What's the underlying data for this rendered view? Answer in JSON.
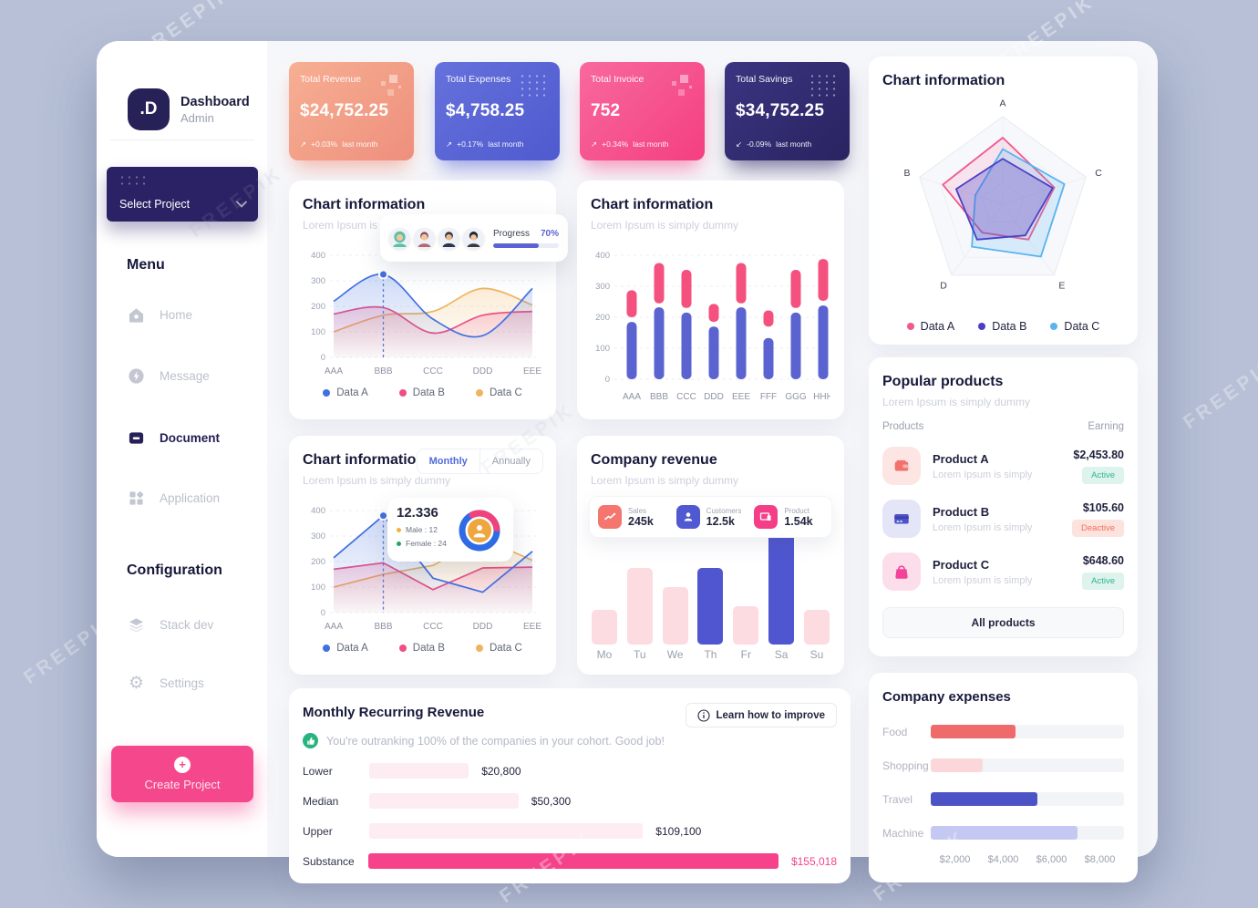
{
  "watermark": "FREEPIK",
  "sidebar": {
    "logo": ".D",
    "brand_title": "Dashboard",
    "brand_subtitle": "Admin",
    "select_project": "Select Project",
    "menu_heading": "Menu",
    "menu": [
      {
        "label": "Home",
        "active": false
      },
      {
        "label": "Message",
        "active": false
      },
      {
        "label": "Document",
        "active": true
      },
      {
        "label": "Application",
        "active": false
      }
    ],
    "config_heading": "Configuration",
    "config": [
      {
        "label": "Stack dev"
      },
      {
        "label": "Settings"
      }
    ],
    "create_project": "Create Project"
  },
  "stat_cards": [
    {
      "title": "Total Revenue",
      "value": "$24,752.25",
      "arrow": "↗",
      "change": "+0.03%",
      "note": "last month",
      "bg": "#ee8f7d"
    },
    {
      "title": "Total Expenses",
      "value": "$4,758.25",
      "arrow": "↗",
      "change": "+0.17%",
      "note": "last month",
      "bg": "#4f5ace"
    },
    {
      "title": "Total Invoice",
      "value": "752",
      "arrow": "↗",
      "change": "+0.34%",
      "note": "last month",
      "bg": "#f43f81"
    },
    {
      "title": "Total Savings",
      "value": "$34,752.25",
      "arrow": "↙",
      "change": "-0.09%",
      "note": "last month",
      "bg": "#292360"
    }
  ],
  "cards": {
    "line_smooth": {
      "title": "Chart information",
      "subtitle": "Lorem Ipsum is simply dummy",
      "tooltip": {
        "label": "Progress",
        "value": "70%",
        "percent": 70
      },
      "legend": [
        {
          "label": "Data A",
          "color": "#4170e0"
        },
        {
          "label": "Data B",
          "color": "#ee4f86"
        },
        {
          "label": "Data C",
          "color": "#efb45f"
        }
      ],
      "chart_data": {
        "type": "area",
        "x": [
          "AAA",
          "BBB",
          "CCC",
          "DDD",
          "EEE"
        ],
        "ylim": [
          0,
          400
        ],
        "yticks": [
          400,
          300,
          200,
          100,
          0
        ],
        "series": [
          {
            "name": "Data A",
            "color": "#4170e0",
            "values": [
              220,
              325,
              150,
              85,
              270
            ]
          },
          {
            "name": "Data B",
            "color": "#ee4f86",
            "values": [
              170,
              195,
              95,
              165,
              180
            ]
          },
          {
            "name": "Data C",
            "color": "#efb45f",
            "values": [
              100,
              165,
              180,
              270,
              205
            ]
          }
        ],
        "marker": {
          "series": 0,
          "index": 1
        }
      }
    },
    "bars": {
      "title": "Chart information",
      "subtitle": "Lorem Ipsum is simply dummy",
      "chart_data": {
        "type": "bar",
        "x": [
          "AAA",
          "BBB",
          "CCC",
          "DDD",
          "EEE",
          "FFF",
          "GGG",
          "HHH"
        ],
        "ylim": [
          0,
          400
        ],
        "yticks": [
          400,
          300,
          200,
          100,
          0
        ],
        "series": [
          {
            "name": "bottom",
            "color": "#5a63cf",
            "ranges": [
              [
                0,
                185
              ],
              [
                0,
                232
              ],
              [
                0,
                215
              ],
              [
                0,
                170
              ],
              [
                0,
                232
              ],
              [
                0,
                133
              ],
              [
                0,
                215
              ],
              [
                0,
                238
              ]
            ]
          },
          {
            "name": "top",
            "color": "#f4517e",
            "ranges": [
              [
                200,
                287
              ],
              [
                245,
                375
              ],
              [
                230,
                353
              ],
              [
                185,
                243
              ],
              [
                245,
                375
              ],
              [
                170,
                222
              ],
              [
                230,
                353
              ],
              [
                253,
                388
              ]
            ]
          }
        ]
      }
    },
    "radar": {
      "title": "Chart information",
      "legend": [
        {
          "label": "Data A",
          "color": "#f2588a"
        },
        {
          "label": "Data B",
          "color": "#4b3fc6"
        },
        {
          "label": "Data C",
          "color": "#58b4ef"
        }
      ],
      "chart_data": {
        "type": "radar",
        "axes": [
          "A",
          "C",
          "E",
          "D",
          "B"
        ],
        "max": 1,
        "series": [
          {
            "name": "Data A",
            "color": "#f2588a",
            "values": [
              0.76,
              0.62,
              0.5,
              0.4,
              0.72
            ]
          },
          {
            "name": "Data B",
            "color": "#4b3fc6",
            "values": [
              0.52,
              0.6,
              0.44,
              0.5,
              0.56
            ]
          },
          {
            "name": "Data C",
            "color": "#58b4ef",
            "values": [
              0.63,
              0.74,
              0.74,
              0.6,
              0.33
            ]
          }
        ]
      }
    },
    "line_straight": {
      "title": "Chart information",
      "subtitle": "Lorem Ipsum is simply dummy",
      "toggle": {
        "options": [
          "Monthly",
          "Annually"
        ],
        "active": "Monthly"
      },
      "tooltip": {
        "value": "12.336",
        "male": "Male : 12",
        "female": "Female : 24",
        "male_dot": "#efb43f",
        "female_dot": "#27a26b",
        "donut": {
          "ring": "#2e6be4",
          "arc": "#f0427c",
          "center": "#efa63f",
          "arc_percent": 30
        }
      },
      "legend": [
        {
          "label": "Data A",
          "color": "#4170e0"
        },
        {
          "label": "Data B",
          "color": "#ee4f86"
        },
        {
          "label": "Data C",
          "color": "#efb45f"
        }
      ],
      "chart_data": {
        "type": "line",
        "x": [
          "AAA",
          "BBB",
          "CCC",
          "DDD",
          "EEE"
        ],
        "ylim": [
          0,
          400
        ],
        "yticks": [
          400,
          300,
          200,
          100,
          0
        ],
        "series": [
          {
            "name": "Data A",
            "color": "#4170e0",
            "values": [
              215,
              380,
              135,
              80,
              240
            ]
          },
          {
            "name": "Data B",
            "color": "#ee4f86",
            "values": [
              170,
              195,
              90,
              175,
              178
            ]
          },
          {
            "name": "Data C",
            "color": "#efb45f",
            "values": [
              100,
              150,
              185,
              290,
              205
            ]
          }
        ],
        "marker": {
          "series": 0,
          "index": 1
        }
      }
    },
    "revenue": {
      "title": "Company revenue",
      "subtitle": "Lorem Ipsum is simply dummy",
      "stats": [
        {
          "label": "Sales",
          "value": "245k",
          "color": "#f4766f"
        },
        {
          "label": "Customers",
          "value": "12.5k",
          "color": "#5159d2"
        },
        {
          "label": "Product",
          "value": "1.54k",
          "color": "#f43f88"
        }
      ],
      "chart_data": {
        "type": "bar",
        "categories": [
          "Mo",
          "Tu",
          "We",
          "Th",
          "Fr",
          "Sa",
          "Su"
        ],
        "heights_pct": [
          27,
          60,
          45,
          60,
          30,
          100,
          27
        ],
        "highlight_indices": [
          3,
          5
        ],
        "bar_color": "#fcdbe1",
        "highlight_color": "#5056cf",
        "marker_index": 5
      }
    },
    "products": {
      "title": "Popular products",
      "subtitle": "Lorem Ipsum is simply dummy",
      "col_products": "Products",
      "col_earning": "Earning",
      "rows": [
        {
          "name": "Product A",
          "desc": "Lorem Ipsum is simply",
          "price": "$2,453.80",
          "status": "Active"
        },
        {
          "name": "Product B",
          "desc": "Lorem Ipsum is simply",
          "price": "$105.60",
          "status": "Deactive"
        },
        {
          "name": "Product C",
          "desc": "Lorem Ipsum is simply",
          "price": "$648.60",
          "status": "Active"
        }
      ],
      "all_products": "All products"
    },
    "mrr": {
      "title": "Monthly Recurring Revenue",
      "learn_button": "Learn how to improve",
      "note": "You're outranking 100% of the companies in your cohort. Good job!",
      "rows": [
        {
          "label": "Lower",
          "value": "$20,800",
          "pct": 24,
          "highlight": false
        },
        {
          "label": "Median",
          "value": "$50,300",
          "pct": 36,
          "highlight": false
        },
        {
          "label": "Upper",
          "value": "$109,100",
          "pct": 66,
          "highlight": false
        },
        {
          "label": "Substance",
          "value": "$155,018",
          "pct": 100,
          "highlight": true
        }
      ]
    },
    "expenses": {
      "title": "Company expenses",
      "chart_data": {
        "type": "bar",
        "categories": [
          "Food",
          "Shopping",
          "Travel",
          "Machine"
        ],
        "values": [
          4300,
          2900,
          5300,
          6800
        ],
        "bar_pct": [
          44,
          27,
          55,
          76
        ],
        "colors": [
          "#ef6b6b",
          "#fcd7da",
          "#4b53c5",
          "#c5c8f2"
        ],
        "x_ticks": [
          "$2,000",
          "$4,000",
          "$6,000",
          "$8,000"
        ]
      }
    }
  }
}
